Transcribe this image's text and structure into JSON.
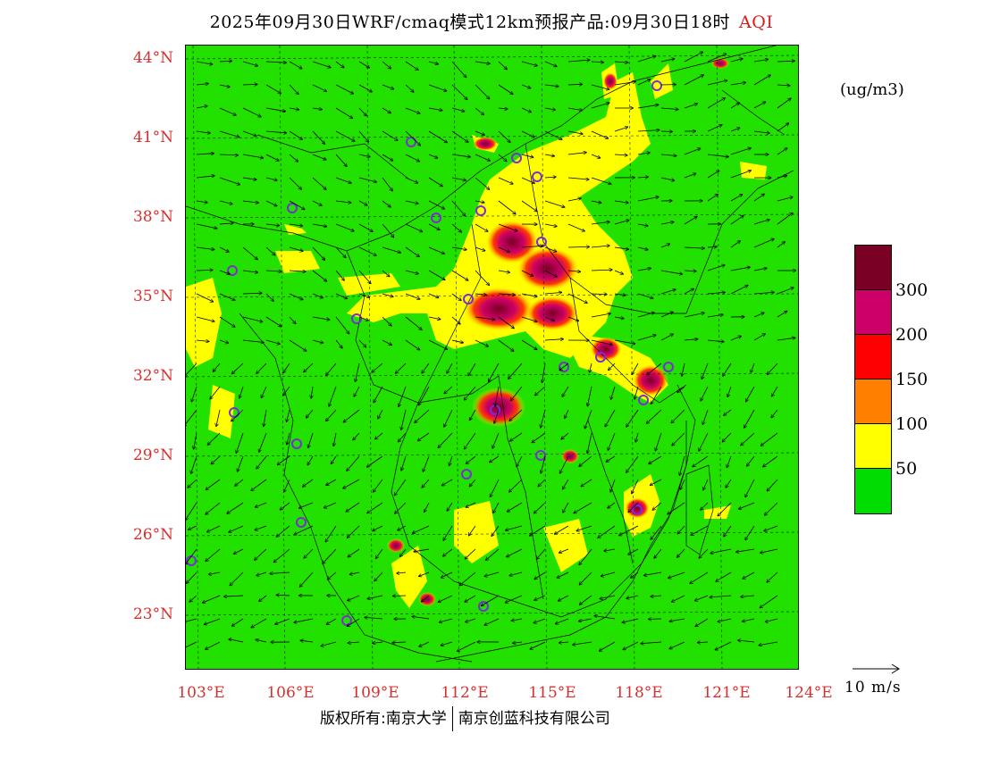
{
  "title": {
    "main": "2025年09月30日WRF/cmaq模式12km预报产品:09月30日18时",
    "variable": "AQI"
  },
  "units": "(ug/m3)",
  "legend": {
    "colors": [
      "#00dd00",
      "#ffff00",
      "#ff8000",
      "#ff0000",
      "#cc0066",
      "#7a0024"
    ],
    "labels": [
      "50",
      "100",
      "150",
      "200",
      "300"
    ]
  },
  "latitude_labels": [
    "44°N",
    "41°N",
    "38°N",
    "35°N",
    "32°N",
    "29°N",
    "26°N",
    "23°N"
  ],
  "longitude_labels": [
    "103°E",
    "106°E",
    "109°E",
    "112°E",
    "115°E",
    "118°E",
    "121°E",
    "124°E"
  ],
  "wind_scale": "10 m/s",
  "footer": {
    "copyright": "版权所有:南京大学",
    "company": "南京创蓝科技有限公司"
  },
  "colors": {
    "background_green": "#22e000",
    "label_red": "#d82e2e",
    "station_circle": "#7a2dd8"
  }
}
